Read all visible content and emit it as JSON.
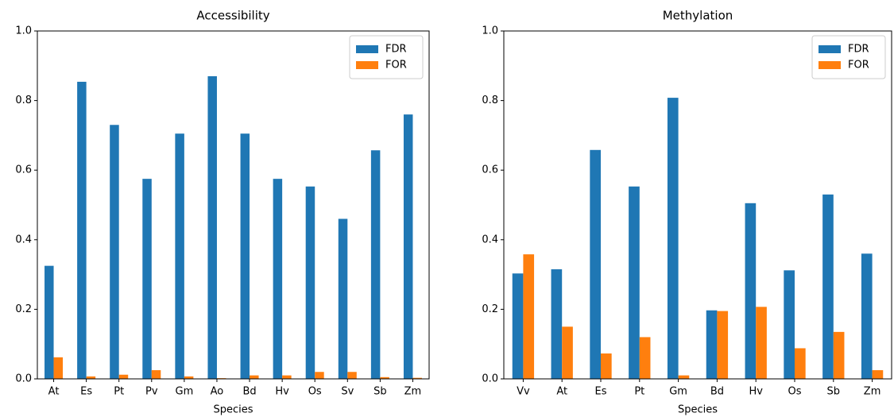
{
  "chart_data": [
    {
      "type": "bar",
      "title": "Accessibility",
      "x_label": "Species",
      "categories": [
        "At",
        "Es",
        "Pt",
        "Pv",
        "Gm",
        "Ao",
        "Bd",
        "Hv",
        "Os",
        "Sv",
        "Sb",
        "Zm"
      ],
      "series": [
        {
          "name": "FDR",
          "color": "#1f77b4",
          "values": [
            0.325,
            0.854,
            0.73,
            0.575,
            0.705,
            0.87,
            0.705,
            0.575,
            0.553,
            0.46,
            0.657,
            0.76
          ]
        },
        {
          "name": "FOR",
          "color": "#ff7f0e",
          "values": [
            0.062,
            0.007,
            0.012,
            0.025,
            0.007,
            0.002,
            0.01,
            0.01,
            0.02,
            0.02,
            0.005,
            0.003
          ]
        }
      ],
      "ylim": [
        0,
        1
      ],
      "yticks": [
        {
          "value": 0,
          "label": "0.0"
        },
        0.2,
        0.4,
        0.6,
        0.8,
        {
          "value": 1,
          "label": "1.0"
        }
      ],
      "legend": "upper right",
      "grid": false
    },
    {
      "type": "bar",
      "title": "Methylation",
      "x_label": "Species",
      "categories": [
        "Vv",
        "At",
        "Es",
        "Pt",
        "Gm",
        "Bd",
        "Hv",
        "Os",
        "Sb",
        "Zm"
      ],
      "series": [
        {
          "name": "FDR",
          "color": "#1f77b4",
          "values": [
            0.303,
            0.315,
            0.658,
            0.553,
            0.808,
            0.197,
            0.505,
            0.312,
            0.53,
            0.36
          ]
        },
        {
          "name": "FOR",
          "color": "#ff7f0e",
          "values": [
            0.358,
            0.15,
            0.073,
            0.12,
            0.01,
            0.195,
            0.207,
            0.088,
            0.135,
            0.025
          ]
        }
      ],
      "ylim": [
        0,
        1
      ],
      "yticks": [
        {
          "value": 0,
          "label": "0.0"
        },
        0.2,
        0.4,
        0.6,
        0.8,
        {
          "value": 1,
          "label": "1.0"
        }
      ],
      "legend": "upper right",
      "grid": false
    }
  ]
}
